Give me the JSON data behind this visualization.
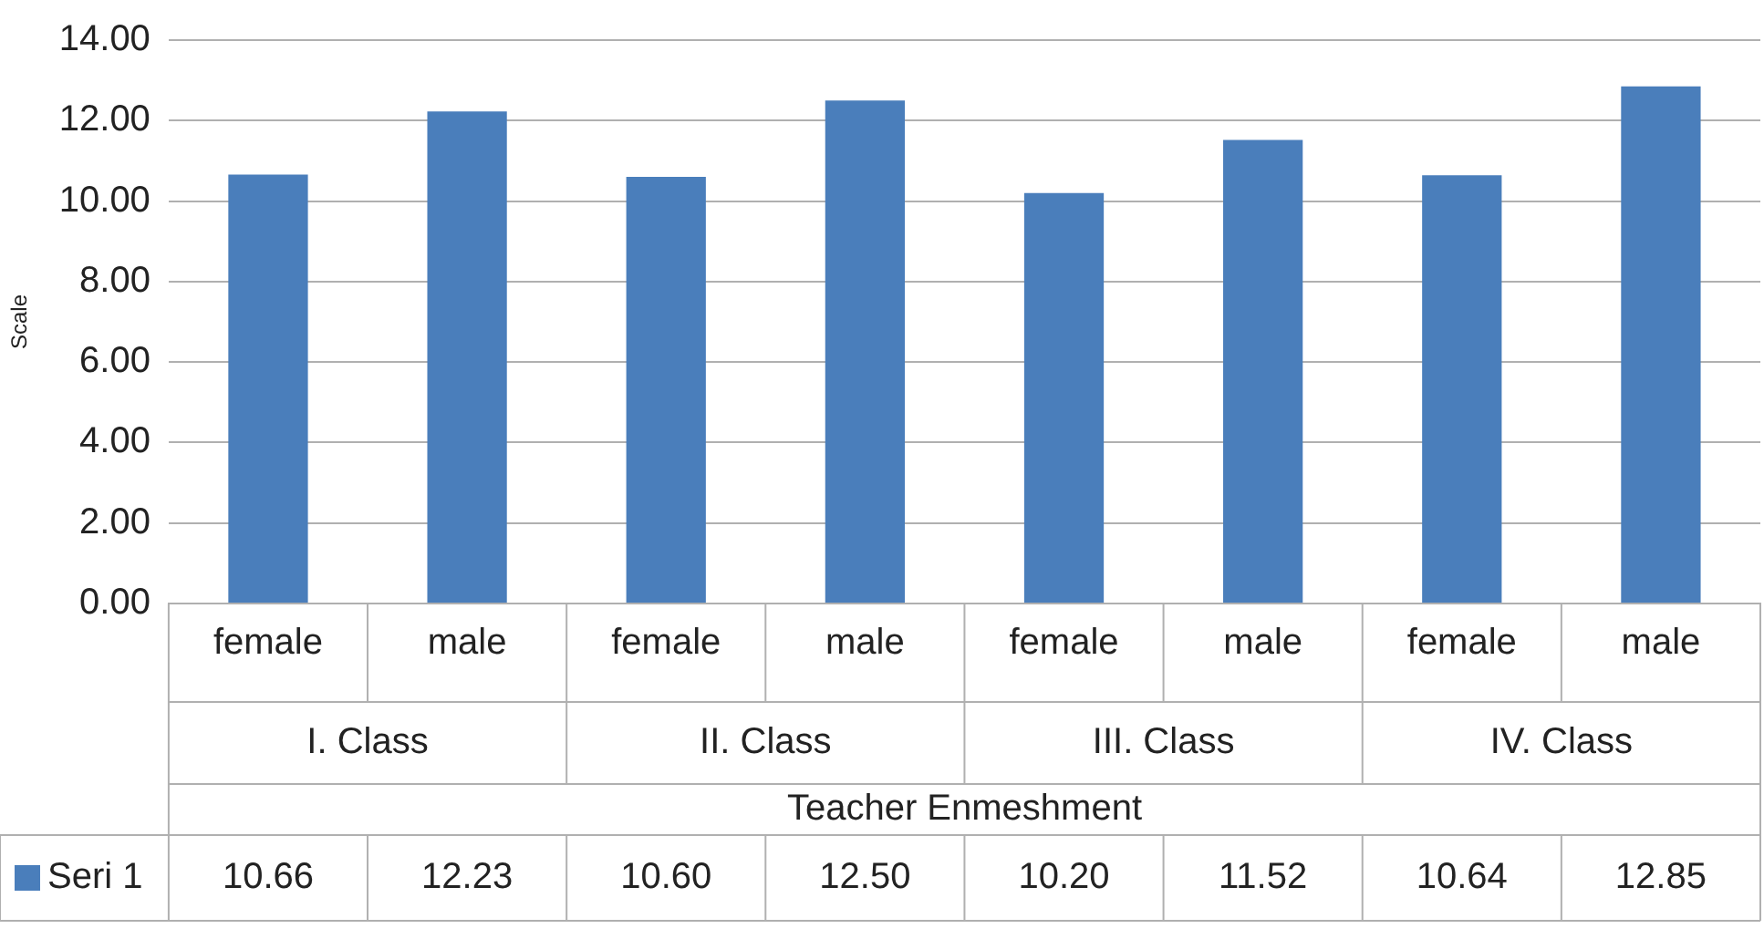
{
  "chart_data": {
    "type": "bar",
    "xlabel": "Teacher Enmeshment",
    "ylabel": "Scale",
    "categories": [
      "female",
      "male",
      "female",
      "male",
      "female",
      "male",
      "female",
      "male"
    ],
    "annotations": [
      "I. Class",
      "II. Class",
      "III. Class",
      "IV. Class"
    ],
    "series": [
      {
        "name": "Seri 1",
        "color": "#4a7ebb",
        "values": [
          10.66,
          12.23,
          10.6,
          12.5,
          10.2,
          11.52,
          10.64,
          12.85
        ],
        "value_labels": [
          "10.66",
          "12.23",
          "10.60",
          "12.50",
          "10.20",
          "11.52",
          "10.64",
          "12.85"
        ]
      }
    ],
    "ylim": [
      0,
      14
    ],
    "yticks": [
      {
        "value": 0,
        "label": "0.00"
      },
      {
        "value": 2,
        "label": "2.00"
      },
      {
        "value": 4,
        "label": "4.00"
      },
      {
        "value": 6,
        "label": "6.00"
      },
      {
        "value": 8,
        "label": "8.00"
      },
      {
        "value": 10,
        "label": "10.00"
      },
      {
        "value": 12,
        "label": "12.00"
      },
      {
        "value": 14,
        "label": "14.00"
      }
    ],
    "grid": "y",
    "legend": "bottom left",
    "data_labels": true
  }
}
